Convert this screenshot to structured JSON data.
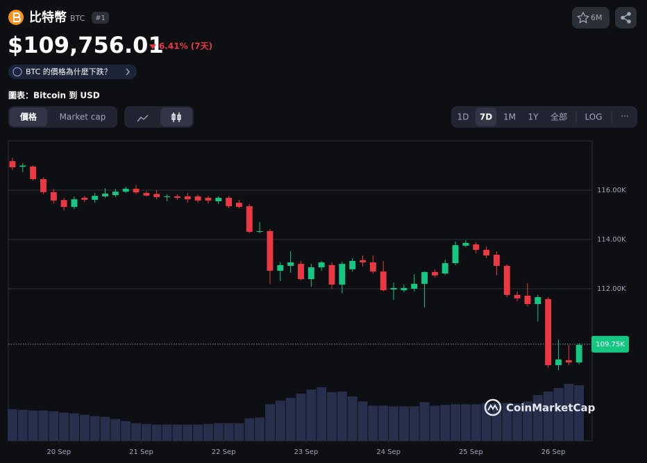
{
  "header": {
    "name": "比特幣",
    "symbol": "BTC",
    "rank": "#1",
    "watchlist": "6M",
    "price": "$109,756.01",
    "change": "6.41% (7天)",
    "why": "BTC 的價格為什麼下跌？",
    "chart_label": "圖表：Bitcoin 到 USD"
  },
  "controls": {
    "tabs": [
      "價格",
      "Market cap"
    ],
    "ranges": [
      "1D",
      "7D",
      "1M",
      "1Y",
      "全部",
      "LOG"
    ],
    "more": "···"
  },
  "watermark": "CoinMarketCap",
  "chart_data": {
    "type": "candlestick",
    "categories": [
      null,
      null,
      null,
      null,
      null,
      null,
      null,
      null,
      null,
      null,
      null,
      null,
      null,
      null,
      null,
      null,
      null,
      null,
      null,
      null,
      null,
      null,
      null,
      null,
      null,
      null,
      null,
      null,
      null,
      null,
      null,
      null,
      null,
      null,
      null,
      null,
      null,
      null,
      null,
      null,
      null,
      null,
      null,
      null,
      null,
      null,
      null,
      null,
      null,
      null,
      null,
      null,
      null,
      null,
      null,
      null
    ],
    "open": [
      117180,
      116950,
      116960,
      116450,
      115920,
      115600,
      115320,
      115690,
      115610,
      115750,
      115800,
      115940,
      116060,
      115890,
      115850,
      115720,
      115750,
      115750,
      115750,
      115690,
      115550,
      115690,
      115490,
      115350,
      114310,
      114340,
      112730,
      112930,
      113010,
      112390,
      112870,
      112960,
      112170,
      112790,
      113160,
      113070,
      112700,
      111970,
      111940,
      112000,
      112200,
      112680,
      112620,
      113040,
      113750,
      113800,
      113580,
      113380,
      112930,
      111750,
      111720,
      111380,
      111580,
      108900,
      109100,
      109010
    ],
    "high": [
      117320,
      117100,
      117010,
      116530,
      116060,
      115690,
      115750,
      115770,
      115890,
      116080,
      116050,
      116140,
      116200,
      115970,
      116000,
      115830,
      115830,
      115890,
      115830,
      115770,
      115750,
      115750,
      115610,
      115440,
      114700,
      114420,
      113070,
      113520,
      113130,
      113010,
      113130,
      113070,
      113100,
      113240,
      113350,
      113350,
      113130,
      112250,
      112170,
      112590,
      112700,
      112790,
      113180,
      113920,
      113970,
      113890,
      113720,
      113520,
      112990,
      111890,
      112230,
      111750,
      111660,
      109940,
      109720,
      109780
    ],
    "low": [
      116820,
      116730,
      116390,
      115830,
      115460,
      115180,
      115240,
      115520,
      115490,
      115690,
      115720,
      115890,
      115830,
      115750,
      115630,
      115550,
      115610,
      115490,
      115490,
      115460,
      115440,
      115270,
      115270,
      114250,
      114250,
      112200,
      112310,
      112650,
      112340,
      112080,
      112730,
      111990,
      111820,
      112700,
      112900,
      112620,
      111890,
      111550,
      111860,
      111890,
      111240,
      112450,
      112560,
      112960,
      113690,
      113440,
      113240,
      112540,
      111660,
      111490,
      111300,
      110680,
      108790,
      108700,
      108900,
      108930
    ],
    "close": [
      116930,
      117000,
      116450,
      115920,
      115580,
      115320,
      115630,
      115610,
      115770,
      115860,
      115940,
      116060,
      115910,
      115780,
      115720,
      115750,
      115690,
      115630,
      115580,
      115580,
      115690,
      115350,
      115320,
      114310,
      114340,
      112730,
      112960,
      113070,
      112390,
      112870,
      113070,
      112170,
      113010,
      113130,
      113070,
      112700,
      111940,
      112030,
      112030,
      112200,
      112680,
      112540,
      113040,
      113770,
      113860,
      113580,
      113350,
      112930,
      111750,
      111610,
      111380,
      111660,
      108900,
      109130,
      109010,
      109720
    ],
    "volume": [
      45,
      44,
      43,
      43,
      42,
      40,
      39,
      37,
      35,
      34,
      31,
      28,
      25,
      24,
      23,
      23,
      23,
      23,
      23,
      24,
      25,
      25,
      25,
      32,
      33,
      52,
      57,
      61,
      67,
      73,
      76,
      69,
      70,
      63,
      56,
      50,
      50,
      49,
      49,
      49,
      55,
      50,
      51,
      52,
      52,
      52,
      53,
      54,
      54,
      53,
      56,
      65,
      70,
      75,
      81,
      79
    ],
    "up_color": "#16c784",
    "down_color": "#ea3943",
    "volume_color": "#272f4c",
    "xlim": [
      -0.4,
      56.27
    ],
    "ylim": [
      105830,
      118000
    ],
    "xticks": [
      {
        "value": 4.5,
        "label": "20 Sep"
      },
      {
        "value": 12.5,
        "label": "21 Sep"
      },
      {
        "value": 20.5,
        "label": "22 Sep"
      },
      {
        "value": 28.5,
        "label": "23 Sep"
      },
      {
        "value": 36.5,
        "label": "24 Sep"
      },
      {
        "value": 44.5,
        "label": "25 Sep"
      },
      {
        "value": 52.5,
        "label": "26 Sep"
      }
    ],
    "yticks": [
      {
        "value": 112000,
        "label": "112.00K"
      },
      {
        "value": 114000,
        "label": "114.00K"
      },
      {
        "value": 116000,
        "label": "116.00K"
      }
    ],
    "current_price": {
      "value": 109750,
      "label": "109.75K"
    },
    "grid": true
  }
}
